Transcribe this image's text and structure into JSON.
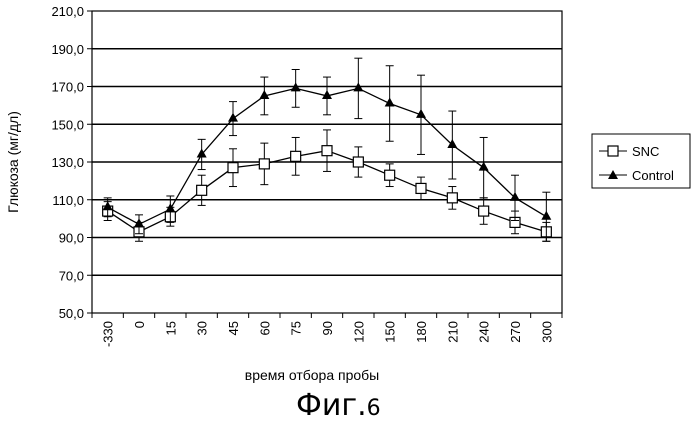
{
  "chart_data": {
    "type": "line",
    "title": "",
    "xlabel": "время отбора пробы",
    "ylabel": "Глюкоза (мг/дл)",
    "ylim": [
      50,
      210
    ],
    "y_ticks": [
      "50,0",
      "70,0",
      "90,0",
      "110,0",
      "130,0",
      "150,0",
      "170,0",
      "190,0",
      "210,0"
    ],
    "categories": [
      "-330",
      "0",
      "15",
      "30",
      "45",
      "60",
      "75",
      "90",
      "120",
      "150",
      "180",
      "210",
      "240",
      "270",
      "300"
    ],
    "grid": "horizontal",
    "legend_position": "right",
    "series": [
      {
        "name": "SNC",
        "marker": "open-square",
        "color": "#000000",
        "values": [
          104,
          93,
          101,
          115,
          127,
          129,
          133,
          136,
          130,
          123,
          116,
          111,
          104,
          98,
          93
        ],
        "error": [
          5,
          5,
          5,
          8,
          10,
          11,
          10,
          11,
          8,
          6,
          6,
          6,
          7,
          6,
          5
        ]
      },
      {
        "name": "Control",
        "marker": "filled-triangle",
        "color": "#000000",
        "values": [
          106,
          97,
          105,
          134,
          153,
          165,
          169,
          165,
          169,
          161,
          155,
          139,
          127,
          111,
          101
        ],
        "error": [
          5,
          5,
          7,
          8,
          9,
          10,
          10,
          10,
          16,
          20,
          21,
          18,
          16,
          12,
          13
        ]
      }
    ]
  },
  "caption": {
    "prefix": "Фиг.",
    "number": "6"
  }
}
